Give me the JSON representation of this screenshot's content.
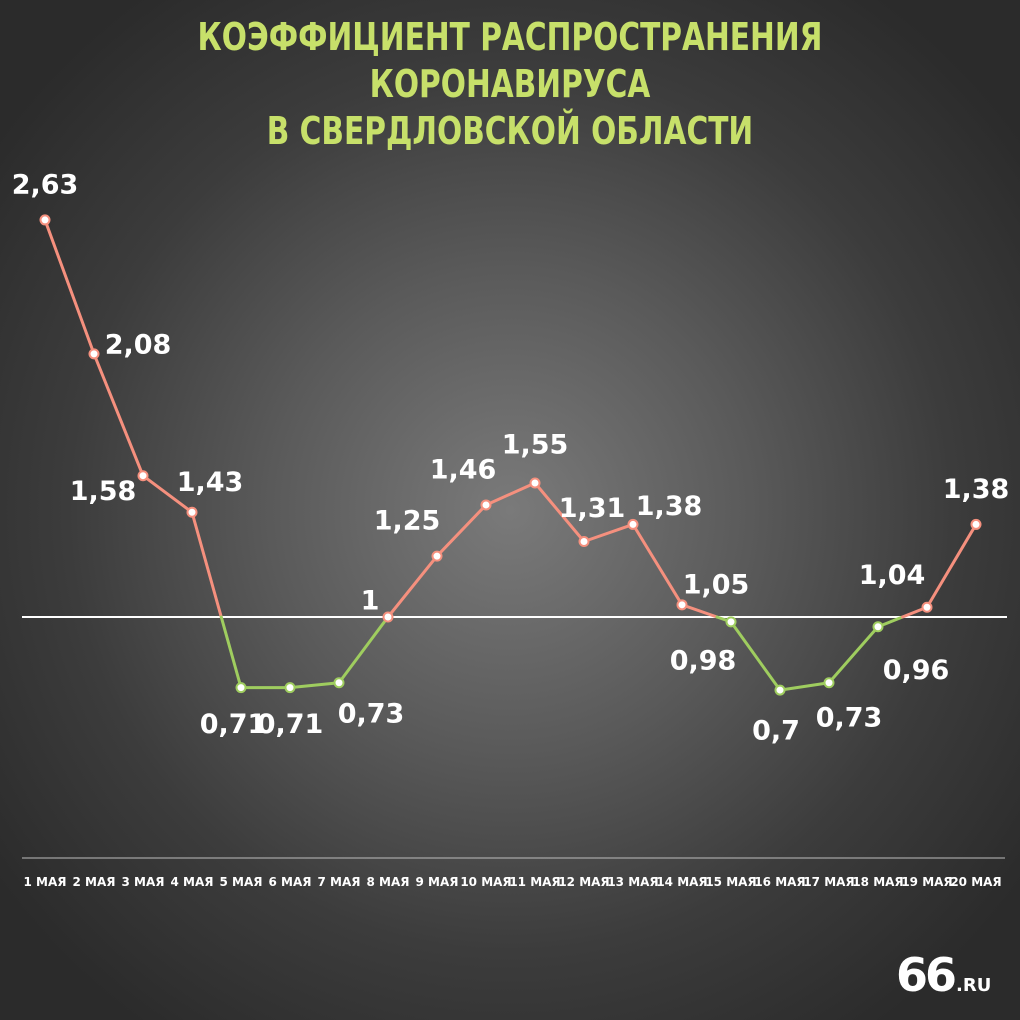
{
  "title_lines": [
    "КОЭФФИЦИЕНТ РАСПРОСТРАНЕНИЯ КОРОНАВИРУСА",
    "В СВЕРДЛОВСКОЙ ОБЛАСТИ"
  ],
  "logo": {
    "num": "66",
    "suffix": ".RU"
  },
  "colors": {
    "title": "#c7e06a",
    "above": "#f5907e",
    "below": "#9fcd5f",
    "reference": "#ffffff"
  },
  "chart_data": {
    "type": "line",
    "title": "КОЭФФИЦИЕНТ РАСПРОСТРАНЕНИЯ КОРОНАВИРУСА В СВЕРДЛОВСКОЙ ОБЛАСТИ",
    "categories": [
      "1 МАЯ",
      "2 МАЯ",
      "3 МАЯ",
      "4 МАЯ",
      "5 МАЯ",
      "6 МАЯ",
      "7 МАЯ",
      "8 МАЯ",
      "9 МАЯ",
      "10 МАЯ",
      "11 МАЯ",
      "12 МАЯ",
      "13 МАЯ",
      "14 МАЯ",
      "15 МАЯ",
      "16 МАЯ",
      "17 МАЯ",
      "18 МАЯ",
      "19 МАЯ",
      "20 МАЯ"
    ],
    "values": [
      2.63,
      2.08,
      1.58,
      1.43,
      0.71,
      0.71,
      0.73,
      1,
      1.25,
      1.46,
      1.55,
      1.31,
      1.38,
      1.05,
      0.98,
      0.7,
      0.73,
      0.96,
      1.04,
      1.38
    ],
    "labels": [
      "2,63",
      "2,08",
      "1,58",
      "1,43",
      "0,71",
      "0,71",
      "0,73",
      "1",
      "1,25",
      "1,46",
      "1,55",
      "1,31",
      "1,38",
      "1,05",
      "0,98",
      "0,7",
      "0,73",
      "0,96",
      "1,04",
      "1,38"
    ],
    "reference_line": 1,
    "grid": false,
    "legend": "none"
  }
}
